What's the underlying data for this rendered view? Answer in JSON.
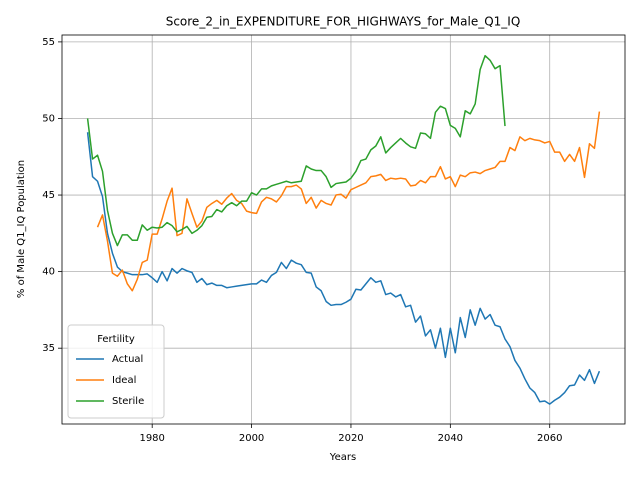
{
  "chart_data": {
    "type": "line",
    "title": "Score_2_in_EXPENDITURE_FOR_HIGHWAYS_for_Male_Q1_IQ",
    "xlabel": "Years",
    "ylabel": "% of Male Q1_IQ Population",
    "legend_title": "Fertility",
    "legend": "lower left",
    "grid": true,
    "x": [
      1967,
      1968,
      1969,
      1970,
      1971,
      1972,
      1973,
      1974,
      1975,
      1976,
      1977,
      1978,
      1979,
      1980,
      1981,
      1982,
      1983,
      1984,
      1985,
      1986,
      1987,
      1988,
      1989,
      1990,
      1991,
      1992,
      1993,
      1994,
      1995,
      1996,
      1997,
      1998,
      1999,
      2000,
      2001,
      2002,
      2003,
      2004,
      2005,
      2006,
      2007,
      2008,
      2009,
      2010,
      2011,
      2012,
      2013,
      2014,
      2015,
      2016,
      2017,
      2018,
      2019,
      2020,
      2021,
      2022,
      2023,
      2024,
      2025,
      2026,
      2027,
      2028,
      2029,
      2030,
      2031,
      2032,
      2033,
      2034,
      2035,
      2036,
      2037,
      2038,
      2039,
      2040,
      2041,
      2042,
      2043,
      2044,
      2045,
      2046,
      2047,
      2048,
      2049,
      2050,
      2051,
      2052,
      2053,
      2054,
      2055,
      2056,
      2057,
      2058,
      2059,
      2060,
      2061,
      2062,
      2063,
      2064,
      2065,
      2066,
      2067,
      2068,
      2069,
      2070
    ],
    "xlim": [
      1961.85,
      2075.15
    ],
    "xticks": [
      1980,
      2000,
      2020,
      2040,
      2060
    ],
    "ylim": [
      30.05,
      55.45
    ],
    "yticks": [
      35,
      40,
      45,
      50,
      55
    ],
    "series": [
      {
        "name": "Actual",
        "color": "#1f77b4",
        "values": [
          49.1,
          46.2,
          45.9,
          44.9,
          42.5,
          41.2,
          40.3,
          40.0,
          39.9,
          39.8,
          39.8,
          39.8,
          39.85,
          39.6,
          39.3,
          40.0,
          39.4,
          40.2,
          39.9,
          40.2,
          40.05,
          39.95,
          39.3,
          39.55,
          39.15,
          39.25,
          39.1,
          39.1,
          38.95,
          39.0,
          39.05,
          39.1,
          39.15,
          39.2,
          39.2,
          39.45,
          39.3,
          39.75,
          39.95,
          40.6,
          40.2,
          40.75,
          40.55,
          40.45,
          39.95,
          39.9,
          39.0,
          38.75,
          38.05,
          37.8,
          37.85,
          37.85,
          38.0,
          38.2,
          38.85,
          38.8,
          39.2,
          39.6,
          39.3,
          39.4,
          38.5,
          38.6,
          38.35,
          38.5,
          37.7,
          37.8,
          36.7,
          37.1,
          35.8,
          36.2,
          35.0,
          36.3,
          34.4,
          36.3,
          34.7,
          37.0,
          35.7,
          37.5,
          36.5,
          37.6,
          36.9,
          37.2,
          36.5,
          36.4,
          35.6,
          35.1,
          34.2,
          33.7,
          33.0,
          32.4,
          32.1,
          31.5,
          31.55,
          31.35,
          31.6,
          31.8,
          32.1,
          32.55,
          32.6,
          33.25,
          32.9,
          33.6,
          32.7,
          33.5
        ]
      },
      {
        "name": "Ideal",
        "color": "#ff7f0e",
        "values": [
          null,
          null,
          42.9,
          43.7,
          42.0,
          39.9,
          39.7,
          40.1,
          39.2,
          38.75,
          39.5,
          40.6,
          40.75,
          42.45,
          42.45,
          43.45,
          44.6,
          45.45,
          42.35,
          42.5,
          44.75,
          43.8,
          42.9,
          43.3,
          44.2,
          44.45,
          44.65,
          44.4,
          44.8,
          45.1,
          44.65,
          44.45,
          43.95,
          43.85,
          43.8,
          44.55,
          44.85,
          44.75,
          44.55,
          44.95,
          45.55,
          45.55,
          45.65,
          45.4,
          44.45,
          44.85,
          44.15,
          44.65,
          44.45,
          44.35,
          45.0,
          45.05,
          44.8,
          45.35,
          45.5,
          45.65,
          45.8,
          46.2,
          46.25,
          46.35,
          45.95,
          46.1,
          46.05,
          46.1,
          46.05,
          45.6,
          45.65,
          45.95,
          45.8,
          46.2,
          46.2,
          46.85,
          46.05,
          46.2,
          45.55,
          46.3,
          46.2,
          46.45,
          46.5,
          46.4,
          46.6,
          46.7,
          46.8,
          47.2,
          47.2,
          48.1,
          47.9,
          48.8,
          48.55,
          48.7,
          48.6,
          48.55,
          48.4,
          48.5,
          47.8,
          47.8,
          47.2,
          47.65,
          47.2,
          48.1,
          46.15,
          48.35,
          48.05,
          50.45
        ]
      },
      {
        "name": "Sterile",
        "color": "#2ca02c",
        "values": [
          50.0,
          47.35,
          47.6,
          46.55,
          44.0,
          42.5,
          41.7,
          42.4,
          42.4,
          42.05,
          42.05,
          43.05,
          42.7,
          42.9,
          42.85,
          42.9,
          43.2,
          43.0,
          42.6,
          42.75,
          42.95,
          42.5,
          42.7,
          43.0,
          43.55,
          43.6,
          44.05,
          43.9,
          44.3,
          44.5,
          44.3,
          44.6,
          44.6,
          45.15,
          45.0,
          45.4,
          45.4,
          45.6,
          45.7,
          45.8,
          45.9,
          45.8,
          45.85,
          45.9,
          46.9,
          46.7,
          46.6,
          46.6,
          46.2,
          45.5,
          45.75,
          45.8,
          45.85,
          46.1,
          46.55,
          47.25,
          47.35,
          47.95,
          48.2,
          48.8,
          47.75,
          48.1,
          48.4,
          48.7,
          48.4,
          48.15,
          48.05,
          49.05,
          49.0,
          48.7,
          50.4,
          50.8,
          50.65,
          49.55,
          49.35,
          48.8,
          50.5,
          50.3,
          50.95,
          53.2,
          54.1,
          53.8,
          53.25,
          53.45,
          49.5,
          null,
          null,
          null,
          null,
          null,
          null,
          null,
          null,
          null,
          null,
          null,
          null,
          null,
          null,
          null,
          null,
          null,
          null,
          null
        ]
      }
    ]
  }
}
